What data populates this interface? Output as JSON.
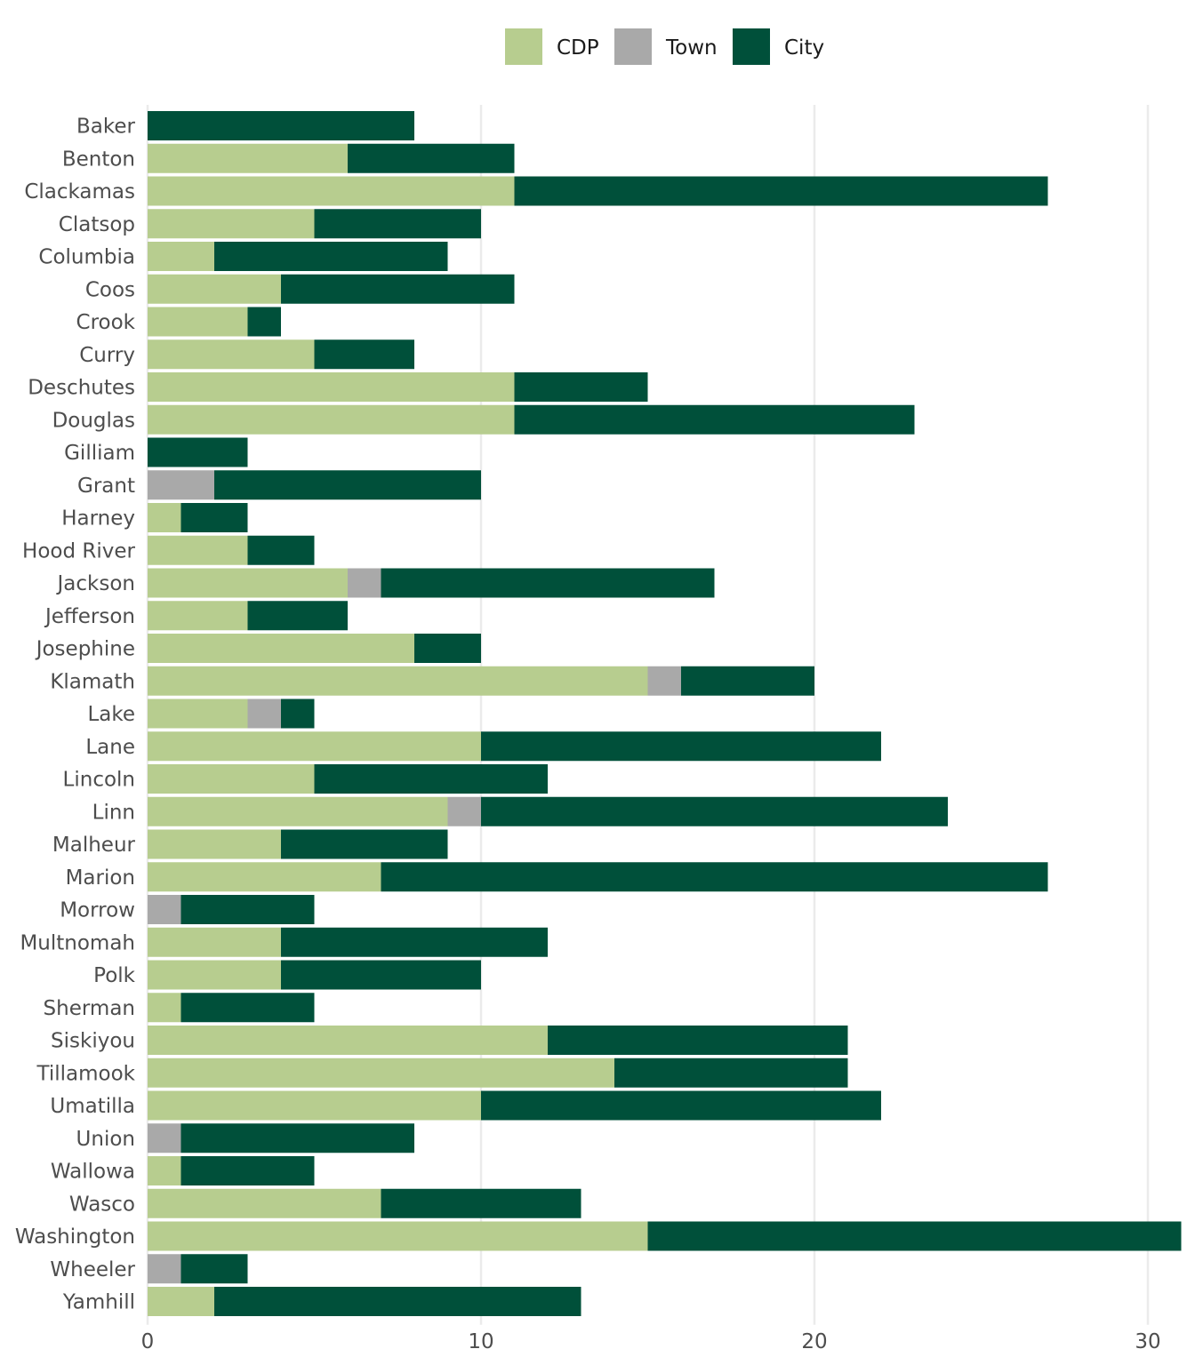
{
  "chart_data": {
    "type": "bar",
    "orientation": "horizontal",
    "stacked": true,
    "title": "",
    "xlabel": "",
    "ylabel": "",
    "xlim": [
      0,
      31
    ],
    "xticks": [
      0,
      10,
      20,
      30
    ],
    "grid": "vertical major gridlines",
    "legend_position": "top",
    "categories": [
      "Baker",
      "Benton",
      "Clackamas",
      "Clatsop",
      "Columbia",
      "Coos",
      "Crook",
      "Curry",
      "Deschutes",
      "Douglas",
      "Gilliam",
      "Grant",
      "Harney",
      "Hood River",
      "Jackson",
      "Jefferson",
      "Josephine",
      "Klamath",
      "Lake",
      "Lane",
      "Lincoln",
      "Linn",
      "Malheur",
      "Marion",
      "Morrow",
      "Multnomah",
      "Polk",
      "Sherman",
      "Siskiyou",
      "Tillamook",
      "Umatilla",
      "Union",
      "Wallowa",
      "Wasco",
      "Washington",
      "Wheeler",
      "Yamhill"
    ],
    "series": [
      {
        "name": "CDP",
        "color": "#b7cd8f",
        "values": [
          0,
          6,
          11,
          5,
          2,
          4,
          3,
          5,
          11,
          11,
          0,
          0,
          1,
          3,
          6,
          3,
          8,
          15,
          3,
          10,
          5,
          9,
          4,
          7,
          0,
          4,
          4,
          1,
          12,
          14,
          10,
          0,
          1,
          7,
          15,
          0,
          2
        ]
      },
      {
        "name": "Town",
        "color": "#a9a9a9",
        "values": [
          0,
          0,
          0,
          0,
          0,
          0,
          0,
          0,
          0,
          0,
          0,
          2,
          0,
          0,
          1,
          0,
          0,
          1,
          1,
          0,
          0,
          1,
          0,
          0,
          1,
          0,
          0,
          0,
          0,
          0,
          0,
          1,
          0,
          0,
          0,
          1,
          0
        ]
      },
      {
        "name": "City",
        "color": "#00503a",
        "values": [
          8,
          5,
          16,
          5,
          7,
          7,
          1,
          3,
          4,
          12,
          3,
          8,
          2,
          2,
          10,
          3,
          2,
          4,
          1,
          12,
          7,
          14,
          5,
          20,
          4,
          8,
          6,
          4,
          9,
          7,
          12,
          7,
          4,
          6,
          16,
          2,
          11
        ]
      }
    ]
  }
}
